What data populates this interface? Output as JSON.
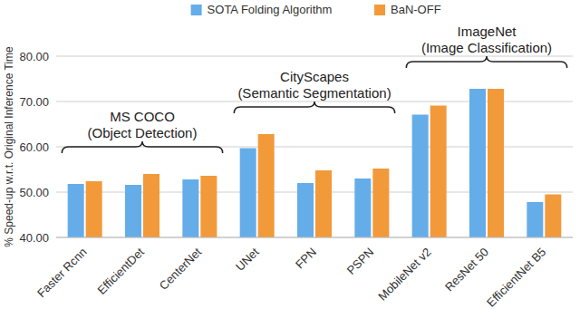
{
  "chart_data": {
    "type": "bar",
    "categories": [
      "Faster Rcnn",
      "EfficientDet",
      "CenterNet",
      "UNet",
      "FPN",
      "PSPN",
      "MobileNet v2",
      "ResNet 50",
      "EfficientNet B5"
    ],
    "series": [
      {
        "name": "SOTA Folding Algorithm",
        "color": "#64ADE9",
        "values": [
          51.8,
          51.6,
          52.8,
          59.7,
          52.0,
          53.0,
          67.1,
          72.8,
          47.8
        ]
      },
      {
        "name": "BaN-OFF",
        "color": "#F29A3A",
        "values": [
          52.4,
          54.0,
          53.6,
          62.8,
          54.8,
          55.2,
          69.1,
          72.8,
          49.5
        ]
      }
    ],
    "ylabel": "% Speed-up w.r.t. Original Inference Time",
    "ylim": [
      40,
      80
    ],
    "yticks": [
      {
        "value": 40,
        "label": "40.00"
      },
      {
        "value": 50,
        "label": "50.00"
      },
      {
        "value": 60,
        "label": "60.00"
      },
      {
        "value": 70,
        "label": "70.00"
      },
      {
        "value": 80,
        "label": "80.00"
      }
    ],
    "grid": true,
    "legend": "top",
    "annotations": [
      {
        "text": [
          "MS COCO",
          "(Object Detection)"
        ],
        "categories": [
          "Faster Rcnn",
          "EfficientDet",
          "CenterNet"
        ]
      },
      {
        "text": [
          "CityScapes",
          "(Semantic Segmentation)"
        ],
        "categories": [
          "UNet",
          "FPN",
          "PSPN"
        ]
      },
      {
        "text": [
          "ImageNet",
          "(Image Classification)"
        ],
        "categories": [
          "MobileNet v2",
          "ResNet 50",
          "EfficientNet B5"
        ]
      }
    ]
  }
}
